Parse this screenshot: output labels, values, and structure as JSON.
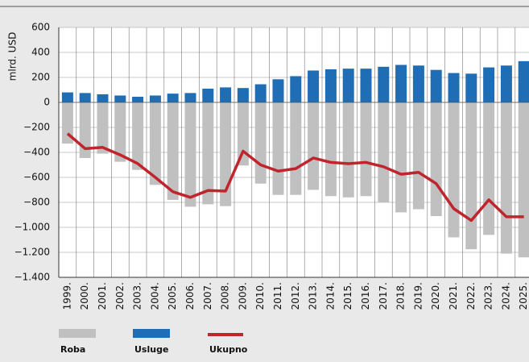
{
  "chart_data": {
    "type": "bar_line",
    "y_label": "mlrd. USD",
    "categories": [
      "1999.",
      "2000.",
      "2001.",
      "2002.",
      "2003.",
      "2004.",
      "2005.",
      "2006.",
      "2007.",
      "2008.",
      "2009.",
      "2010.",
      "2011.",
      "2012.",
      "2013.",
      "2014.",
      "2015.",
      "2016.",
      "2017.",
      "2018.",
      "2019.",
      "2020.",
      "2021.",
      "2022.",
      "2023.",
      "2024.",
      "2025."
    ],
    "series": [
      {
        "name": "Roba",
        "color": "#c0c0c0",
        "kind": "bar",
        "values": [
          -330,
          -445,
          -410,
          -475,
          -540,
          -660,
          -780,
          -835,
          -815,
          -830,
          -505,
          -650,
          -740,
          -740,
          -700,
          -750,
          -760,
          -750,
          -800,
          -880,
          -855,
          -910,
          -1080,
          -1175,
          -1060,
          -1210,
          -1240
        ]
      },
      {
        "name": "Usluge",
        "color": "#1f6db5",
        "kind": "bar",
        "values": [
          80,
          75,
          65,
          55,
          45,
          55,
          70,
          75,
          110,
          120,
          115,
          145,
          185,
          210,
          255,
          265,
          270,
          270,
          285,
          300,
          295,
          260,
          235,
          230,
          280,
          295,
          330
        ]
      },
      {
        "name": "Ukupno",
        "color": "#c0242c",
        "kind": "line",
        "values": [
          -250,
          -370,
          -360,
          -420,
          -490,
          -600,
          -715,
          -760,
          -705,
          -710,
          -390,
          -500,
          -550,
          -530,
          -445,
          -480,
          -490,
          -480,
          -515,
          -575,
          -560,
          -650,
          -850,
          -945,
          -780,
          -915,
          -915
        ]
      }
    ],
    "ylim": [
      -1400,
      600
    ],
    "yticks": [
      600,
      400,
      200,
      0,
      {
        "value": -200,
        "label": "−200"
      },
      {
        "value": -400,
        "label": "−400"
      },
      {
        "value": -600,
        "label": "−600"
      },
      {
        "value": -800,
        "label": "−800"
      },
      {
        "value": -1000,
        "label": "−1.000"
      },
      {
        "value": -1200,
        "label": "−1.200"
      },
      {
        "value": -1400,
        "label": "−1.400"
      }
    ],
    "grid": true
  }
}
